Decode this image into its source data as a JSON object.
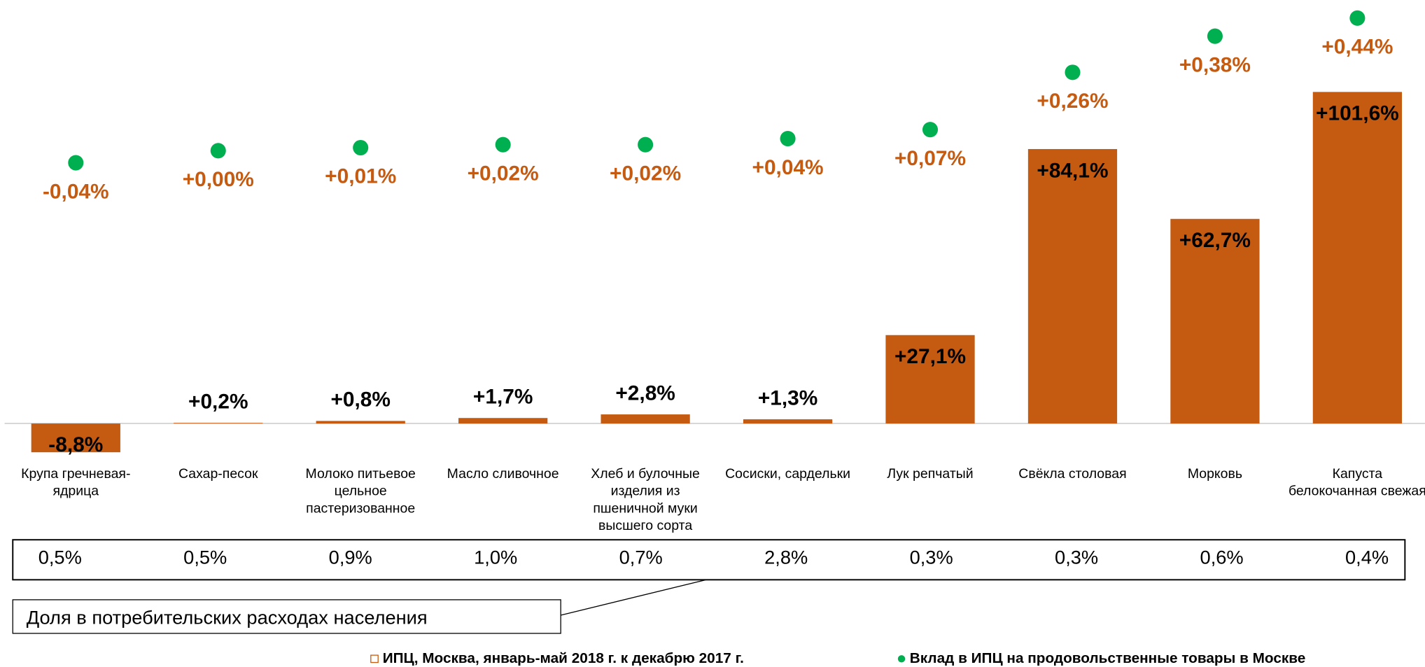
{
  "chart_data": {
    "type": "bar",
    "categories": [
      "Крупа гречневая-ядрица",
      "Сахар-песок",
      "Молоко питьевое цельное пастеризованное",
      "Масло сливочное",
      "Хлеб и булочные изделия из пшеничной муки высшего сорта",
      "Сосиски, сардельки",
      "Лук репчатый",
      "Свёкла столовая",
      "Морковь",
      "Капуста белокочанная свежая"
    ],
    "series": [
      {
        "name": "ИПЦ, Москва, январь-май 2018 г. к декабрю 2017 г.",
        "color": "#c55a11",
        "values": [
          -8.8,
          0.2,
          0.8,
          1.7,
          2.8,
          1.3,
          27.1,
          84.1,
          62.7,
          101.6
        ],
        "value_labels": [
          "-8,8%",
          "+0,2%",
          "+0,8%",
          "+1,7%",
          "+2,8%",
          "+1,3%",
          "+27,1%",
          "+84,1%",
          "+62,7%",
          "+101,6%"
        ]
      },
      {
        "name": "Вклад в ИПЦ на продовольственные товары в Москве",
        "type": "scatter",
        "axis": "y2",
        "color": "#00b050",
        "label_color": "#c55a11",
        "values": [
          -0.04,
          0.0,
          0.01,
          0.02,
          0.02,
          0.04,
          0.07,
          0.26,
          0.38,
          0.44
        ],
        "value_labels": [
          "-0,04%",
          "+0,00%",
          "+0,01%",
          "+0,02%",
          "+0,02%",
          "+0,04%",
          "+0,07%",
          "+0,26%",
          "+0,38%",
          "+0,44%"
        ]
      }
    ],
    "ylim": [
      -10,
      110
    ],
    "y2lim": [
      -0.1,
      0.5
    ],
    "table": {
      "label": "Доля в потребительских расходах населения",
      "values": [
        0.5,
        0.5,
        0.9,
        1.0,
        0.7,
        2.8,
        0.3,
        0.3,
        0.6,
        0.4
      ],
      "value_labels": [
        "0,5%",
        "0,5%",
        "0,9%",
        "1,0%",
        "0,7%",
        "2,8%",
        "0,3%",
        "0,3%",
        "0,6%",
        "0,4%"
      ]
    }
  }
}
